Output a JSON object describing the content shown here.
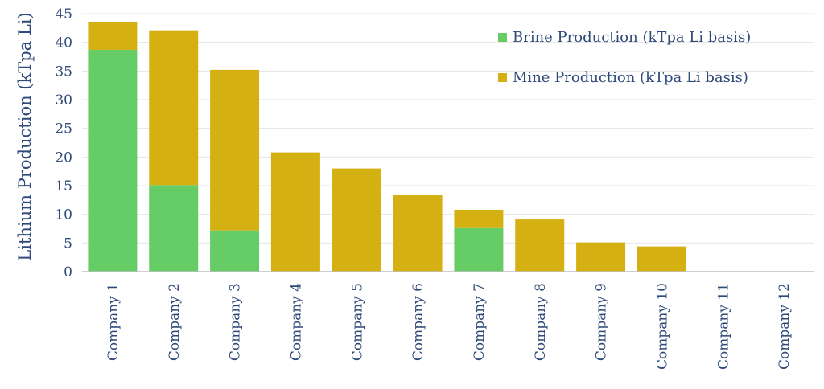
{
  "chart_data": {
    "type": "bar",
    "stacked": true,
    "title": "",
    "xlabel": "",
    "ylabel": "Lithium Production (kTpa Li)",
    "ylim": [
      0,
      45
    ],
    "yticks": [
      0,
      5,
      10,
      15,
      20,
      25,
      30,
      35,
      40,
      45
    ],
    "grid": true,
    "legend_position": "top-right",
    "categories": [
      "Company 1",
      "Company 2",
      "Company 3",
      "Company 4",
      "Company 5",
      "Company 6",
      "Company 7",
      "Company 8",
      "Company 9",
      "Company 10",
      "Company 11",
      "Company 12"
    ],
    "series": [
      {
        "name": "Brine Production (kTpa Li basis)",
        "color": "#66cc66",
        "values": [
          38.7,
          15.1,
          7.2,
          0,
          0,
          0,
          7.6,
          0,
          0,
          0,
          0,
          0
        ]
      },
      {
        "name": "Mine Production (kTpa Li basis)",
        "color": "#d4b012",
        "values": [
          4.9,
          27.0,
          28.0,
          20.8,
          18.0,
          13.4,
          3.2,
          9.1,
          5.1,
          4.4,
          0,
          0
        ]
      }
    ]
  }
}
